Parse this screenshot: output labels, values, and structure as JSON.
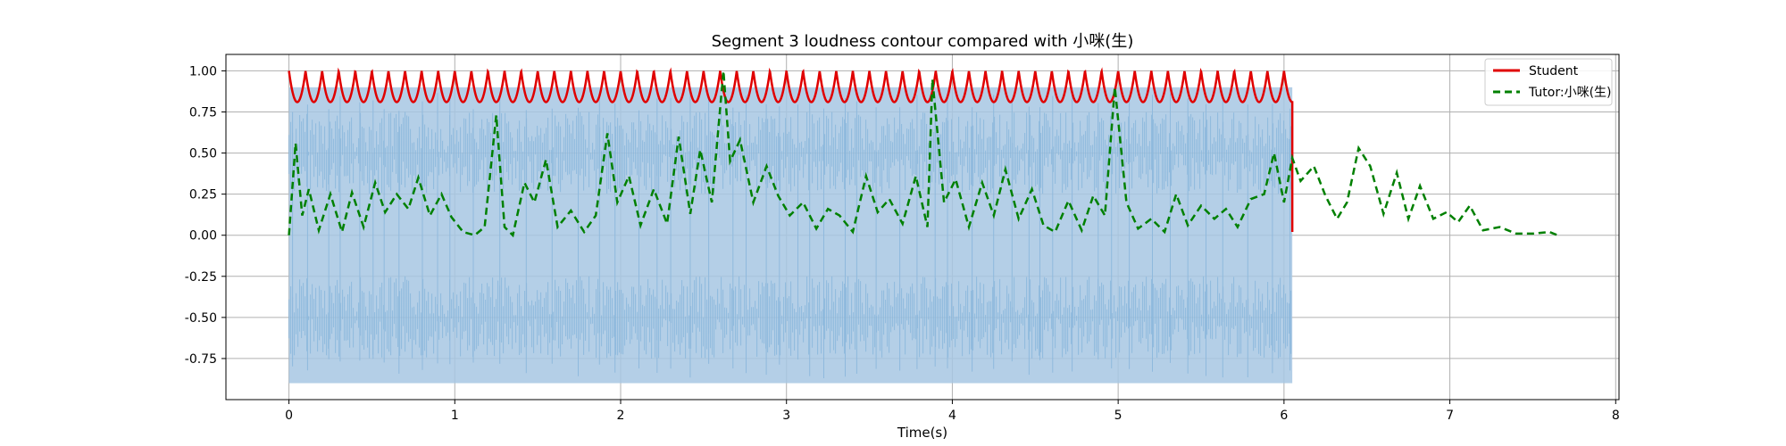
{
  "chart_data": {
    "type": "line",
    "title": "Segment 3 loudness contour compared with 小咪(生)",
    "xlabel": "Time(s)",
    "ylabel": "",
    "xlim": [
      -0.38,
      8.02
    ],
    "ylim": [
      -1.0,
      1.1
    ],
    "grid": true,
    "legend_position": "top-right",
    "x_ticks": [
      0,
      1,
      2,
      3,
      4,
      5,
      6,
      7,
      8
    ],
    "x_tick_labels": [
      "0",
      "1",
      "2",
      "3",
      "4",
      "5",
      "6",
      "7",
      "8"
    ],
    "y_ticks": [
      1.0,
      0.75,
      0.5,
      0.25,
      0.0,
      -0.25,
      -0.5,
      -0.75
    ],
    "y_tick_labels": [
      "1.00",
      "0.75",
      "0.50",
      "0.25",
      "0.00",
      "-0.25",
      "-0.50",
      "-0.75"
    ],
    "waveform": {
      "x_range": [
        0,
        6.05
      ],
      "outer_envelope": [
        -0.9,
        0.9
      ],
      "dense_upper_band": [
        0.25,
        0.75
      ],
      "dense_lower_band": [
        -0.75,
        -0.25
      ],
      "color": "#a7c7e3"
    },
    "series": [
      {
        "name": "Student",
        "style": "solid",
        "color": "#e00000",
        "period": 0.1,
        "min": 0.8,
        "max": 1.0,
        "x_end": 6.05,
        "end_value": 0.02
      },
      {
        "name": "Tutor:小咪(生)",
        "style": "dashed",
        "color": "#008000",
        "x": [
          0,
          0.04,
          0.08,
          0.12,
          0.18,
          0.25,
          0.32,
          0.38,
          0.45,
          0.52,
          0.58,
          0.65,
          0.72,
          0.78,
          0.85,
          0.92,
          0.98,
          1.05,
          1.12,
          1.18,
          1.25,
          1.3,
          1.35,
          1.42,
          1.48,
          1.55,
          1.62,
          1.7,
          1.78,
          1.85,
          1.92,
          1.98,
          2.05,
          2.12,
          2.2,
          2.28,
          2.35,
          2.42,
          2.48,
          2.55,
          2.62,
          2.66,
          2.72,
          2.8,
          2.88,
          2.95,
          3.02,
          3.1,
          3.18,
          3.25,
          3.32,
          3.4,
          3.48,
          3.55,
          3.62,
          3.7,
          3.78,
          3.85,
          3.88,
          3.95,
          4.02,
          4.1,
          4.18,
          4.25,
          4.32,
          4.4,
          4.48,
          4.55,
          4.62,
          4.7,
          4.78,
          4.85,
          4.92,
          4.98,
          5.05,
          5.12,
          5.2,
          5.28,
          5.35,
          5.42,
          5.5,
          5.58,
          5.65,
          5.72,
          5.8,
          5.88,
          5.94,
          6.0,
          6.05,
          6.1,
          6.18,
          6.25,
          6.32,
          6.38,
          6.45,
          6.52,
          6.6,
          6.68,
          6.75,
          6.82,
          6.9,
          6.98,
          7.05,
          7.12,
          7.2,
          7.3,
          7.4,
          7.5,
          7.6,
          7.65
        ],
        "y": [
          0.0,
          0.56,
          0.12,
          0.28,
          0.03,
          0.25,
          0.02,
          0.26,
          0.05,
          0.32,
          0.14,
          0.25,
          0.16,
          0.35,
          0.12,
          0.25,
          0.11,
          0.02,
          0.0,
          0.05,
          0.73,
          0.05,
          0.0,
          0.32,
          0.2,
          0.46,
          0.05,
          0.15,
          0.02,
          0.12,
          0.62,
          0.2,
          0.36,
          0.06,
          0.28,
          0.07,
          0.6,
          0.13,
          0.52,
          0.2,
          1.0,
          0.45,
          0.58,
          0.2,
          0.42,
          0.24,
          0.12,
          0.2,
          0.04,
          0.16,
          0.12,
          0.02,
          0.36,
          0.14,
          0.22,
          0.07,
          0.36,
          0.05,
          0.95,
          0.2,
          0.34,
          0.05,
          0.32,
          0.12,
          0.4,
          0.1,
          0.28,
          0.06,
          0.02,
          0.21,
          0.03,
          0.24,
          0.12,
          0.9,
          0.2,
          0.04,
          0.1,
          0.02,
          0.25,
          0.06,
          0.18,
          0.1,
          0.16,
          0.05,
          0.22,
          0.25,
          0.5,
          0.2,
          0.47,
          0.33,
          0.42,
          0.24,
          0.1,
          0.2,
          0.53,
          0.42,
          0.13,
          0.38,
          0.1,
          0.3,
          0.1,
          0.14,
          0.08,
          0.18,
          0.03,
          0.05,
          0.01,
          0.01,
          0.02,
          0.0
        ]
      }
    ]
  }
}
